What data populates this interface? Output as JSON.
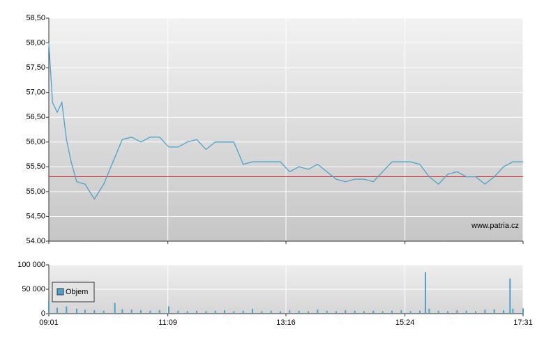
{
  "chart_data": [
    {
      "type": "line",
      "xlim": [
        "09:01",
        "17:31"
      ],
      "ylim": [
        54,
        58.5
      ],
      "yticks": [
        {
          "value": 54,
          "label": "54.00"
        },
        {
          "value": 54.5,
          "label": "54,50"
        },
        {
          "value": 55,
          "label": "55,00"
        },
        {
          "value": 55.5,
          "label": "55,50"
        },
        {
          "value": 56,
          "label": "56,00"
        },
        {
          "value": 56.5,
          "label": "56,50"
        },
        {
          "value": 57,
          "label": "57,00"
        },
        {
          "value": 57.5,
          "label": "57,50"
        },
        {
          "value": 58,
          "label": "58,00"
        },
        {
          "value": 58.5,
          "label": "58,50"
        }
      ],
      "grid": true,
      "reference_line": {
        "value": 55.3,
        "color": "#e03030"
      },
      "watermark": "www.patria.cz",
      "series": [
        {
          "color": "#4aa3cc",
          "x": [
            "09:01",
            "09:05",
            "09:10",
            "09:15",
            "09:20",
            "09:25",
            "09:31",
            "09:40",
            "09:50",
            "10:00",
            "10:10",
            "10:20",
            "10:30",
            "10:40",
            "10:50",
            "11:00",
            "11:10",
            "11:20",
            "11:30",
            "11:40",
            "11:50",
            "12:00",
            "12:10",
            "12:20",
            "12:30",
            "12:40",
            "12:50",
            "13:00",
            "13:10",
            "13:20",
            "13:30",
            "13:40",
            "13:50",
            "14:00",
            "14:10",
            "14:20",
            "14:30",
            "14:40",
            "14:50",
            "15:00",
            "15:10",
            "15:20",
            "15:30",
            "15:40",
            "15:50",
            "16:00",
            "16:10",
            "16:20",
            "16:30",
            "16:40",
            "16:50",
            "17:00",
            "17:10",
            "17:20",
            "17:31"
          ],
          "values": [
            58.0,
            56.8,
            56.6,
            56.8,
            56.05,
            55.6,
            55.2,
            55.15,
            54.85,
            55.15,
            55.6,
            56.05,
            56.1,
            56.0,
            56.1,
            56.1,
            55.9,
            55.9,
            56.0,
            56.05,
            55.85,
            56.0,
            56.0,
            56.0,
            55.55,
            55.6,
            55.6,
            55.6,
            55.6,
            55.4,
            55.5,
            55.45,
            55.55,
            55.4,
            55.25,
            55.2,
            55.25,
            55.25,
            55.2,
            55.4,
            55.6,
            55.6,
            55.6,
            55.55,
            55.3,
            55.15,
            55.35,
            55.4,
            55.3,
            55.3,
            55.15,
            55.3,
            55.5,
            55.6,
            55.6
          ]
        }
      ]
    },
    {
      "type": "bar",
      "xlim": [
        "09:01",
        "17:31"
      ],
      "xticks": [
        "09:01",
        "11:09",
        "13:16",
        "15:24",
        "17:31"
      ],
      "ylim": [
        0,
        100000
      ],
      "yticks": [
        0,
        {
          "value": 50000,
          "label": "50 000"
        },
        {
          "value": 100000,
          "label": "100 000"
        }
      ],
      "grid": true,
      "legend": "top-left",
      "series": [
        {
          "name": "Objem",
          "color": "#4aa3cc",
          "x": [
            "09:01",
            "09:10",
            "09:20",
            "09:31",
            "09:40",
            "09:50",
            "10:00",
            "10:12",
            "10:20",
            "10:30",
            "10:40",
            "10:50",
            "11:00",
            "11:10",
            "11:20",
            "11:30",
            "11:40",
            "11:50",
            "12:00",
            "12:10",
            "12:20",
            "12:30",
            "12:40",
            "12:50",
            "13:00",
            "13:10",
            "13:20",
            "13:30",
            "13:40",
            "13:50",
            "14:00",
            "14:10",
            "14:20",
            "14:30",
            "14:40",
            "14:50",
            "15:00",
            "15:10",
            "15:20",
            "15:30",
            "15:40",
            "15:46",
            "15:50",
            "16:00",
            "16:10",
            "16:20",
            "16:30",
            "16:40",
            "16:50",
            "17:00",
            "17:10",
            "17:17",
            "17:20",
            "17:31"
          ],
          "values": [
            25000,
            12000,
            15000,
            10000,
            8000,
            7000,
            6000,
            22000,
            9000,
            8000,
            7000,
            6000,
            7000,
            15000,
            6000,
            5000,
            6000,
            5000,
            6000,
            7000,
            5000,
            6000,
            10000,
            5000,
            6000,
            5000,
            7000,
            6000,
            5000,
            8000,
            6000,
            5000,
            7000,
            6000,
            5000,
            6000,
            5000,
            6000,
            7000,
            5000,
            6000,
            85000,
            10000,
            6000,
            5000,
            7000,
            6000,
            5000,
            8000,
            9000,
            7000,
            72000,
            10000,
            11000
          ]
        }
      ]
    }
  ]
}
